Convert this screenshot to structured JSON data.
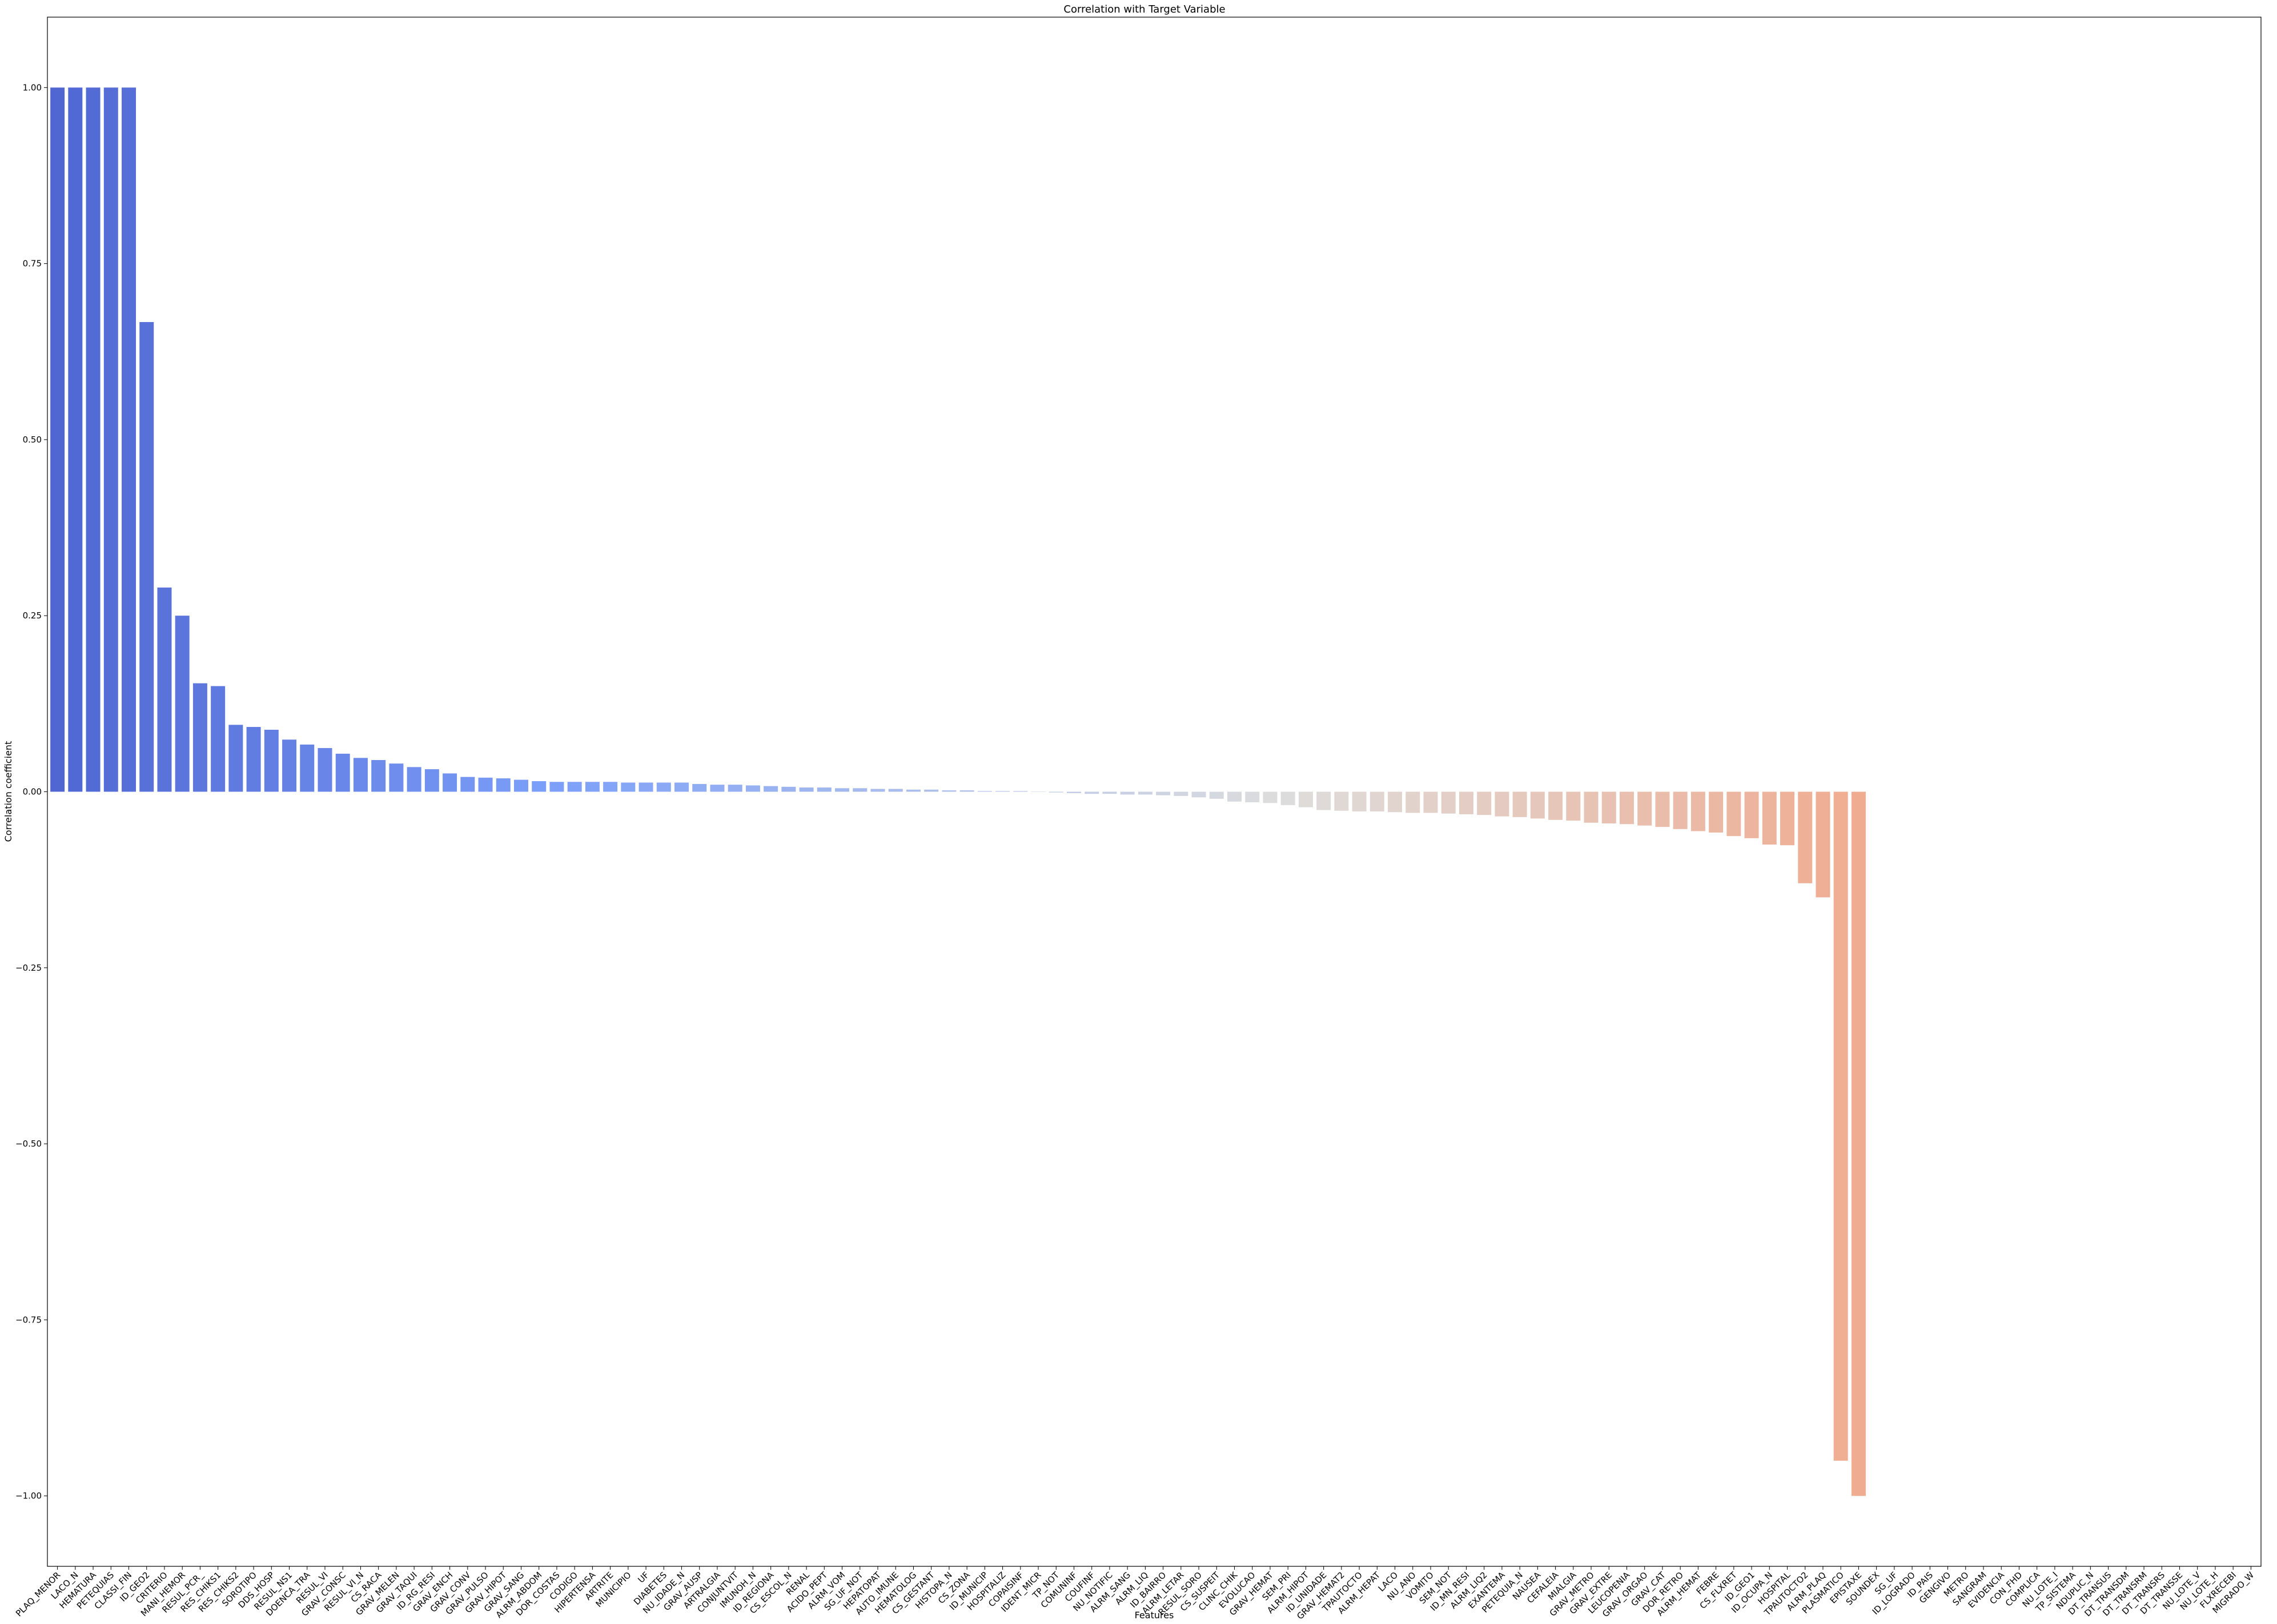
{
  "chart_data": {
    "type": "bar",
    "title": "Correlation with Target Variable",
    "xlabel": "Features",
    "ylabel": "Correlation coefficient",
    "ylim": [
      -1.1,
      1.1
    ],
    "yticks": [
      "1.00",
      "0.75",
      "0.50",
      "0.25",
      "0.00",
      "−0.25",
      "−0.50",
      "−0.75",
      "−1.00"
    ],
    "ytick_values": [
      1.0,
      0.75,
      0.5,
      0.25,
      0.0,
      -0.25,
      -0.5,
      -0.75,
      -1.0
    ],
    "palette": "coolwarm",
    "grid": false,
    "categories": [
      "PLAQ_MENOR",
      "LACO_N",
      "HEMATURA",
      "PETEQUIAS",
      "CLASSI_FIN",
      "ID_GEO2",
      "CRITERIO",
      "MANI_HEMOR",
      "RESUL_PCR_",
      "RES_CHIKS1",
      "RES_CHIKS2",
      "SOROTIPO",
      "DDS_HOSP",
      "RESUL_NS1",
      "DOENCA_TRA",
      "RESUL_VI",
      "GRAV_CONSC",
      "RESUL_VI_N",
      "CS_RACA",
      "GRAV_MELEN",
      "GRAV_TAQUI",
      "ID_RG_RESI",
      "GRAV_ENCH",
      "GRAV_CONV",
      "GRAV_PULSO",
      "GRAV_HIPOT",
      "GRAV_SANG",
      "ALRM_ABDOM",
      "DOR_COSTAS",
      "CODIGO",
      "HIPERTENSA",
      "ARTRITE",
      "MUNICIPIO",
      "UF",
      "DIABETES",
      "NU_IDADE_N",
      "GRAV_AUSP",
      "ARTRALGIA",
      "CONJUNTVIT",
      "IMUNOH_N",
      "ID_REGIONA",
      "CS_ESCOL_N",
      "RENAL",
      "ACIDO_PEPT",
      "ALRM_VOM",
      "SG_UF_NOT",
      "HEPATOPAT",
      "AUTO_IMUNE",
      "HEMATOLOG",
      "CS_GESTANT",
      "HISTOPA_N",
      "CS_ZONA",
      "ID_MUNICIP",
      "HOSPITALIZ",
      "COPAISINF",
      "IDENT_MICR",
      "TP_NOT",
      "COMUNINF",
      "COUFINF",
      "NU_NOTIFIC",
      "ALRM_SANG",
      "ALRM_LIQ",
      "ID_BAIRRO",
      "ALRM_LETAR",
      "RESUL_SORO",
      "CS_SUSPEIT",
      "CLINC_CHIK",
      "EVOLUCAO",
      "GRAV_HEMAT",
      "SEM_PRI",
      "ALRM_HIPOT",
      "ID_UNIDADE",
      "GRAV_HEMAT2",
      "TPAUTOCTO",
      "ALRM_HEPAT",
      "LACO",
      "NU_ANO",
      "VOMITO",
      "SEM_NOT",
      "ID_MN_RESI",
      "ALRM_LIQ2",
      "EXANTEMA",
      "PETEQUIA_N",
      "NAUSEA",
      "CEFALEIA",
      "MIALGIA",
      "GRAV_METRO",
      "GRAV_EXTRE",
      "LEUCOPENIA",
      "GRAV_ORGAO",
      "GRAV_CAT",
      "DOR_RETRO",
      "ALRM_HEMAT",
      "FEBRE",
      "CS_FLXRET",
      "ID_GEO1",
      "ID_OCUPA_N",
      "HOSPITAL",
      "TPAUTOCTO2",
      "ALRM_PLAQ",
      "PLASMATICO",
      "EPISTAXE",
      "SOUNDEX",
      "SG_UF",
      "ID_LOGRADO",
      "ID_PAIS",
      "GENGIVO",
      "METRO",
      "SANGRAM",
      "EVIDENCIA",
      "CON_FHD",
      "COMPLICA",
      "NU_LOTE_I",
      "TP_SISTEMA",
      "NDUPLIC_N",
      "DT_TRANSUS",
      "DT_TRANSDM",
      "DT_TRANSRM",
      "DT_TRANSRS",
      "DT_TRANSSE",
      "NU_LOTE_V",
      "NU_LOTE_H",
      "FLXRECEBI",
      "MIGRADO_W"
    ],
    "values": [
      1.0,
      1.0,
      1.0,
      1.0,
      1.0,
      0.667,
      0.29,
      0.25,
      0.154,
      0.15,
      0.095,
      0.092,
      0.088,
      0.074,
      0.067,
      0.062,
      0.054,
      0.048,
      0.045,
      0.04,
      0.035,
      0.032,
      0.026,
      0.021,
      0.02,
      0.019,
      0.017,
      0.015,
      0.014,
      0.014,
      0.014,
      0.014,
      0.013,
      0.013,
      0.013,
      0.013,
      0.011,
      0.01,
      0.01,
      0.009,
      0.008,
      0.007,
      0.006,
      0.006,
      0.005,
      0.005,
      0.004,
      0.004,
      0.003,
      0.003,
      0.002,
      0.002,
      0.001,
      0.001,
      0.001,
      0.0,
      -0.001,
      -0.002,
      -0.003,
      -0.003,
      -0.004,
      -0.004,
      -0.005,
      -0.006,
      -0.008,
      -0.01,
      -0.014,
      -0.015,
      -0.016,
      -0.019,
      -0.022,
      -0.026,
      -0.027,
      -0.028,
      -0.028,
      -0.029,
      -0.03,
      -0.03,
      -0.031,
      -0.032,
      -0.033,
      -0.035,
      -0.036,
      -0.038,
      -0.04,
      -0.041,
      -0.044,
      -0.045,
      -0.046,
      -0.048,
      -0.05,
      -0.053,
      -0.056,
      -0.058,
      -0.063,
      -0.066,
      -0.075,
      -0.076,
      -0.13,
      -0.15,
      -0.95,
      -1.0,
      null,
      null,
      null,
      null,
      null,
      null,
      null,
      null,
      null,
      null,
      null,
      null,
      null,
      null,
      null,
      null,
      null,
      null,
      null,
      null,
      null,
      null
    ]
  }
}
